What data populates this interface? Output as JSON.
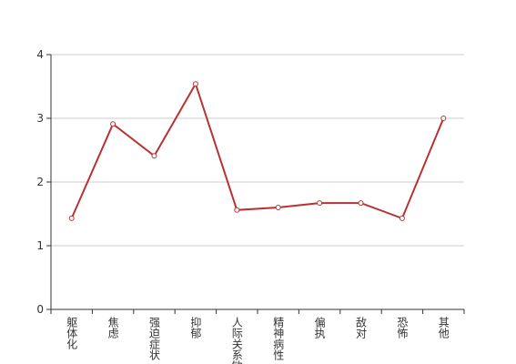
{
  "chart_data": {
    "type": "line",
    "categories": [
      "躯体化",
      "焦虑",
      "强迫症状",
      "抑郁",
      "人际关系敏感",
      "精神病性",
      "偏执",
      "敌对",
      "恐怖",
      "其他"
    ],
    "series": [
      {
        "color": "#b83232",
        "values": [
          1.43,
          2.91,
          2.41,
          3.54,
          1.56,
          1.6,
          1.67,
          1.67,
          1.43,
          3.0
        ]
      }
    ],
    "ylim": [
      0,
      4
    ],
    "yticks": [
      0,
      1,
      2,
      3,
      4
    ],
    "grid": true
  }
}
